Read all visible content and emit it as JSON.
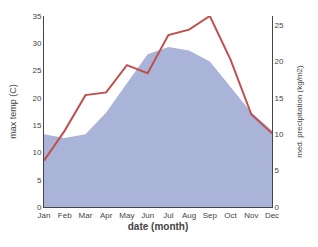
{
  "chart_data": {
    "type": "line",
    "xlabel": "date (month)",
    "ylabel": "max temp (C)",
    "y2label": "med. precipitation (kg/m2)",
    "categories": [
      "Jan",
      "Feb",
      "Mar",
      "Apr",
      "May",
      "Jun",
      "Jul",
      "Aug",
      "Sep",
      "Oct",
      "Nov",
      "Dec"
    ],
    "series": [
      {
        "type": "area",
        "axis": "y2",
        "color": "#aab4d8",
        "values": [
          10.0,
          9.5,
          10.0,
          13.0,
          17.0,
          21.0,
          22.0,
          21.5,
          20.0,
          16.5,
          13.0,
          10.5
        ]
      },
      {
        "type": "line",
        "color": "#c0504d",
        "values": [
          8.5,
          14.0,
          20.5,
          21.0,
          26.0,
          24.5,
          31.5,
          32.5,
          35.0,
          27.0,
          17.0,
          13.5
        ]
      }
    ],
    "ylim": [
      0,
      35
    ],
    "yticks": [
      0,
      5,
      10,
      15,
      20,
      25,
      30,
      35
    ],
    "y2lim": [
      0,
      26.25
    ],
    "y2ticks": [
      0,
      5,
      10,
      15,
      20,
      25
    ],
    "grid": false
  }
}
